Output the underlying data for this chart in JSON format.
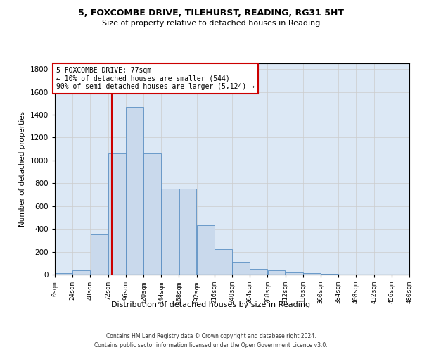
{
  "title_line1": "5, FOXCOMBE DRIVE, TILEHURST, READING, RG31 5HT",
  "title_line2": "Size of property relative to detached houses in Reading",
  "xlabel": "Distribution of detached houses by size in Reading",
  "ylabel": "Number of detached properties",
  "footer_line1": "Contains HM Land Registry data © Crown copyright and database right 2024.",
  "footer_line2": "Contains public sector information licensed under the Open Government Licence v3.0.",
  "bin_edges": [
    0,
    24,
    48,
    72,
    96,
    120,
    144,
    168,
    192,
    216,
    240,
    264,
    288,
    312,
    336,
    360,
    384,
    408,
    432,
    456,
    480
  ],
  "bar_values": [
    10,
    35,
    350,
    1060,
    1470,
    1060,
    750,
    750,
    430,
    225,
    110,
    50,
    40,
    20,
    15,
    5,
    0,
    0,
    0,
    0
  ],
  "bar_color": "#c9d9ec",
  "bar_edge_color": "#5a8fc3",
  "property_size": 77,
  "vline_color": "#cc0000",
  "annotation_text": "5 FOXCOMBE DRIVE: 77sqm\n← 10% of detached houses are smaller (544)\n90% of semi-detached houses are larger (5,124) →",
  "annotation_box_color": "#ffffff",
  "annotation_box_edge": "#cc0000",
  "ylim": [
    0,
    1850
  ],
  "yticks": [
    0,
    200,
    400,
    600,
    800,
    1000,
    1200,
    1400,
    1600,
    1800
  ],
  "bg_color": "#ffffff",
  "grid_color": "#cccccc",
  "ax_bg_color": "#dce8f5"
}
